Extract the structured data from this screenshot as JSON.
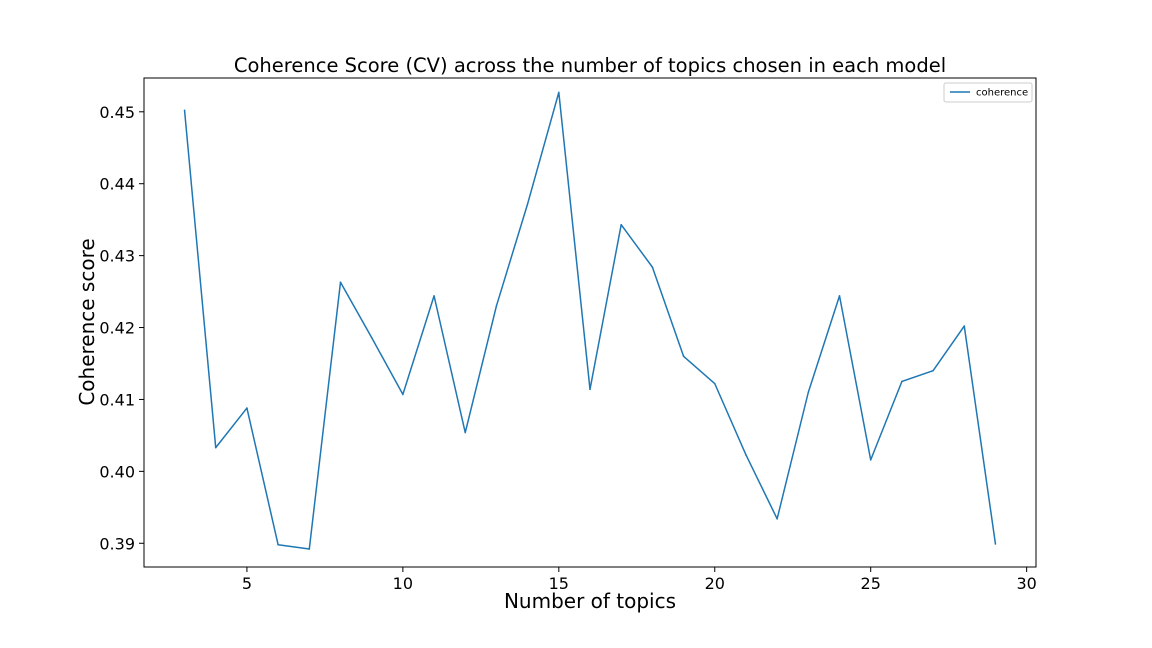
{
  "chart_data": {
    "type": "line",
    "title": "Coherence Score (CV) across the number of topics chosen in each model",
    "xlabel": "Number of topics",
    "ylabel": "Coherence score",
    "xlim": [
      1.7,
      30.3
    ],
    "ylim": [
      0.3867,
      0.4547
    ],
    "xticks": [
      5,
      10,
      15,
      20,
      25,
      30
    ],
    "yticks": [
      0.39,
      0.4,
      0.41,
      0.42,
      0.43,
      0.44,
      0.45
    ],
    "ytick_labels": [
      "0.39",
      "0.40",
      "0.41",
      "0.42",
      "0.43",
      "0.44",
      "0.45"
    ],
    "grid": false,
    "legend": {
      "position": "top-right"
    },
    "series": [
      {
        "name": "coherence",
        "color": "#1f77b4",
        "x": [
          3,
          4,
          5,
          6,
          7,
          8,
          9,
          10,
          11,
          12,
          13,
          14,
          15,
          16,
          17,
          18,
          19,
          20,
          21,
          22,
          23,
          24,
          25,
          26,
          27,
          28,
          29
        ],
        "y": [
          0.4502,
          0.4033,
          0.4088,
          0.3898,
          0.3892,
          0.4263,
          0.4186,
          0.4107,
          0.4244,
          0.4054,
          0.423,
          0.4372,
          0.4527,
          0.4114,
          0.4343,
          0.4284,
          0.416,
          0.4122,
          0.4023,
          0.3934,
          0.411,
          0.4244,
          0.4016,
          0.4125,
          0.414,
          0.4202,
          0.3899
        ]
      }
    ]
  }
}
